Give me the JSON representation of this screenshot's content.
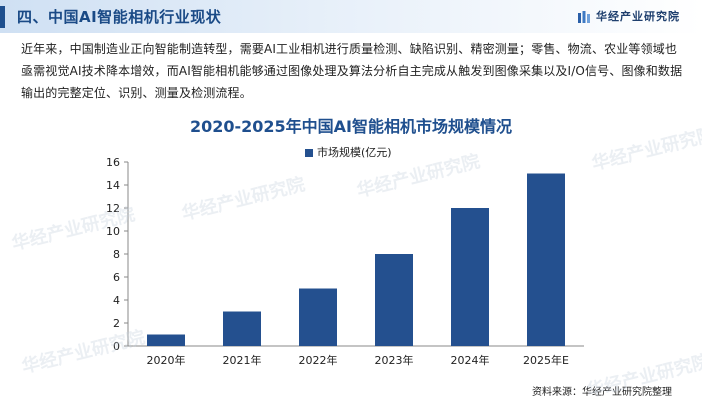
{
  "header": {
    "title": "四、中国AI智能相机行业现状",
    "brand": "华经产业研究院"
  },
  "paragraph": "近年来，中国制造业正向智能制造转型，需要AI工业相机进行质量检测、缺陷识别、精密测量；零售、物流、农业等领域也亟需视觉AI技术降本增效，而AI智能相机能够通过图像处理及算法分析自主完成从触发到图像采集以及I/O信号、图像和数据输出的完整定位、识别、测量及检测流程。",
  "chart_data": {
    "type": "bar",
    "title": "2020-2025年中国AI智能相机市场规模情况",
    "categories": [
      "2020年",
      "2021年",
      "2022年",
      "2023年",
      "2024年",
      "2025年E"
    ],
    "series": [
      {
        "name": "市场规模(亿元)",
        "values": [
          1,
          3,
          5,
          8,
          12,
          15
        ]
      }
    ],
    "xlabel": "",
    "ylabel": "",
    "ylim": [
      0,
      16
    ],
    "yticks": [
      0,
      2,
      4,
      6,
      8,
      10,
      12,
      14,
      16
    ],
    "grid": false,
    "legend": "top-center",
    "bar_color": "#24508f"
  },
  "source": "资料来源：华经产业研究院整理",
  "watermarks": [
    "华经产业研究院",
    "华经产业研究院",
    "华经产业研究院",
    "华经产业研究院",
    "华经产业研究院",
    "华经产业研究院"
  ],
  "colors": {
    "accent": "#1f4f8e",
    "bar": "#24508f"
  }
}
